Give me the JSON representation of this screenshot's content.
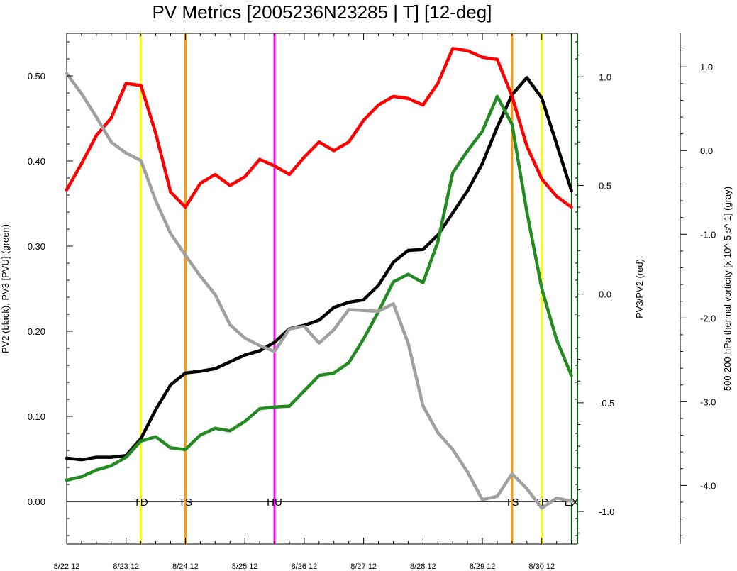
{
  "chart_data": {
    "type": "line",
    "title": "PV Metrics [2005236N23285 | T] [12-deg]",
    "x_tick_labels": [
      "8/22 12",
      "8/23 12",
      "8/24 12",
      "8/25 12",
      "8/26 12",
      "8/27 12",
      "8/28 12",
      "8/29 12",
      "8/30 12"
    ],
    "x_range_days": [
      0,
      8.6
    ],
    "left_axis": {
      "label": "PV2 (black), PV3 [PVU] (green)",
      "ylim": [
        -0.05,
        0.55
      ],
      "tick_labels": [
        "0.00",
        "0.10",
        "0.20",
        "0.30",
        "0.40",
        "0.50"
      ],
      "tick_values": [
        0.0,
        0.1,
        0.2,
        0.3,
        0.4,
        0.5
      ]
    },
    "mid_axis": {
      "label": "PV3/PV2 (red)",
      "ylim": [
        -1.15,
        1.2
      ],
      "tick_labels": [
        "-1.0",
        "-0.5",
        "0.0",
        "0.5",
        "1.0"
      ],
      "tick_values": [
        -1.0,
        -0.5,
        0.0,
        0.5,
        1.0
      ]
    },
    "right_axis": {
      "label": "500-200-hPa thermal vorticity [x 10^-5 s^-1] (gray)",
      "ylim": [
        -4.7,
        1.4
      ],
      "tick_labels": [
        "-4.0",
        "-3.0",
        "-2.0",
        "-1.0",
        "0.0",
        "1.0"
      ],
      "tick_values": [
        -4.0,
        -3.0,
        -2.0,
        -1.0,
        0.0,
        1.0
      ]
    },
    "series": [
      {
        "axis": "left",
        "color": "#000000",
        "x": [
          0,
          0.25,
          0.5,
          0.75,
          1,
          1.25,
          1.5,
          1.75,
          2,
          2.25,
          2.5,
          2.75,
          3,
          3.25,
          3.5,
          3.75,
          4,
          4.25,
          4.5,
          4.75,
          5,
          5.25,
          5.5,
          5.75,
          6,
          6.25,
          6.5,
          6.75,
          7,
          7.25,
          7.5,
          7.75,
          8,
          8.25,
          8.5
        ],
        "values": [
          0.051,
          0.049,
          0.052,
          0.052,
          0.054,
          0.074,
          0.108,
          0.137,
          0.151,
          0.153,
          0.156,
          0.164,
          0.172,
          0.177,
          0.187,
          0.203,
          0.207,
          0.213,
          0.228,
          0.234,
          0.237,
          0.254,
          0.281,
          0.295,
          0.296,
          0.313,
          0.339,
          0.365,
          0.397,
          0.44,
          0.478,
          0.498,
          0.474,
          0.42,
          0.365
        ]
      },
      {
        "axis": "left",
        "color": "#228b22",
        "x": [
          0,
          0.25,
          0.5,
          0.75,
          1,
          1.25,
          1.5,
          1.75,
          2,
          2.25,
          2.5,
          2.75,
          3,
          3.25,
          3.5,
          3.75,
          4,
          4.25,
          4.5,
          4.75,
          5,
          5.25,
          5.5,
          5.75,
          6,
          6.25,
          6.5,
          6.75,
          7,
          7.25,
          7.5,
          7.75,
          8,
          8.25,
          8.5
        ],
        "values": [
          0.025,
          0.029,
          0.037,
          0.042,
          0.052,
          0.071,
          0.076,
          0.063,
          0.061,
          0.078,
          0.086,
          0.083,
          0.094,
          0.109,
          0.111,
          0.112,
          0.13,
          0.148,
          0.151,
          0.163,
          0.191,
          0.223,
          0.258,
          0.267,
          0.257,
          0.305,
          0.386,
          0.412,
          0.435,
          0.476,
          0.443,
          0.34,
          0.25,
          0.19,
          0.148
        ]
      },
      {
        "axis": "mid",
        "color": "#ff0000",
        "x": [
          0,
          0.25,
          0.5,
          0.75,
          1,
          1.25,
          1.5,
          1.75,
          2,
          2.25,
          2.5,
          2.75,
          3,
          3.25,
          3.5,
          3.75,
          4,
          4.25,
          4.5,
          4.75,
          5,
          5.25,
          5.5,
          5.75,
          6,
          6.25,
          6.5,
          6.75,
          7,
          7.25,
          7.5,
          7.75,
          8,
          8.25,
          8.5
        ],
        "values": [
          0.48,
          0.6,
          0.73,
          0.81,
          0.97,
          0.96,
          0.74,
          0.47,
          0.4,
          0.51,
          0.55,
          0.5,
          0.54,
          0.62,
          0.59,
          0.55,
          0.63,
          0.7,
          0.66,
          0.7,
          0.8,
          0.87,
          0.91,
          0.9,
          0.87,
          0.97,
          1.13,
          1.12,
          1.09,
          1.08,
          0.91,
          0.68,
          0.53,
          0.45,
          0.4
        ]
      },
      {
        "axis": "right",
        "color": "#a0a0a0",
        "x": [
          0,
          0.25,
          0.5,
          0.75,
          1,
          1.25,
          1.5,
          1.75,
          2,
          2.25,
          2.5,
          2.75,
          3,
          3.25,
          3.5,
          3.75,
          4,
          4.25,
          4.5,
          4.75,
          5,
          5.25,
          5.5,
          5.75,
          6,
          6.25,
          6.5,
          6.75,
          7,
          7.25,
          7.5,
          7.75,
          8,
          8.25,
          8.5
        ],
        "values": [
          0.92,
          0.68,
          0.4,
          0.1,
          -0.03,
          -0.12,
          -0.6,
          -0.99,
          -1.25,
          -1.5,
          -1.72,
          -2.08,
          -2.24,
          -2.33,
          -2.4,
          -2.13,
          -2.1,
          -2.3,
          -2.14,
          -1.9,
          -1.91,
          -1.92,
          -1.83,
          -2.3,
          -3.05,
          -3.37,
          -3.57,
          -3.84,
          -4.17,
          -4.13,
          -3.86,
          -4.04,
          -4.27,
          -4.15,
          -4.19
        ]
      }
    ],
    "vertical_markers": [
      {
        "x": 1.25,
        "color": "#ffff00",
        "label": "TD"
      },
      {
        "x": 2.0,
        "color": "#ff9900",
        "label": "TS"
      },
      {
        "x": 3.5,
        "color": "#ff00ff",
        "label": "HU"
      },
      {
        "x": 7.5,
        "color": "#ff9900",
        "label": "TS"
      },
      {
        "x": 8.0,
        "color": "#ffff00",
        "label": "TD"
      },
      {
        "x": 8.5,
        "color": "#006400",
        "label": "EX"
      }
    ],
    "reference_line": {
      "axis": "left",
      "y": 0.0,
      "color": "#000000"
    }
  }
}
